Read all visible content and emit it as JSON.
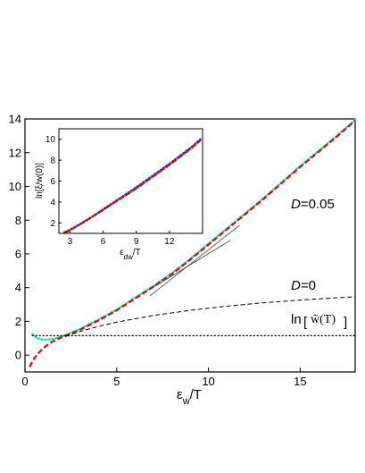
{
  "chart_data": [
    {
      "type": "line",
      "xlabel": "ε_w/T",
      "xlabel_main": "ε",
      "xlabel_sub": "w",
      "xlabel_tail": "/T",
      "xlim": [
        0,
        18
      ],
      "ylim": [
        -1,
        14
      ],
      "x_ticks": [
        0,
        5,
        10,
        15
      ],
      "y_ticks": [
        0,
        2,
        4,
        6,
        8,
        10,
        12,
        14
      ],
      "annotations": {
        "d005_italic": "D",
        "d005_rest": "=0.05",
        "d0_italic": "D",
        "d0_rest": "=0",
        "ln_label": "ln",
        "ln_inner": "w̃(T)"
      },
      "series": [
        {
          "style": "dotted-green",
          "color": "#00e0b0",
          "points": [
            [
              0.4,
              1.25
            ],
            [
              0.6,
              1.05
            ],
            [
              0.8,
              0.95
            ],
            [
              1.0,
              0.92
            ],
            [
              1.2,
              0.92
            ],
            [
              1.5,
              0.95
            ],
            [
              2,
              1.1
            ],
            [
              3,
              1.55
            ],
            [
              4,
              2.1
            ],
            [
              5,
              2.7
            ],
            [
              6,
              3.4
            ],
            [
              7,
              4.1
            ],
            [
              8,
              4.85
            ],
            [
              9,
              5.7
            ],
            [
              10,
              6.6
            ],
            [
              11,
              7.5
            ],
            [
              12,
              8.4
            ],
            [
              13,
              9.3
            ],
            [
              14,
              10.25
            ],
            [
              15,
              11.2
            ],
            [
              16,
              12.1
            ],
            [
              17,
              13.0
            ],
            [
              18,
              13.95
            ]
          ]
        },
        {
          "style": "dashed-red",
          "color": "#e00000",
          "points": [
            [
              0.25,
              -0.7
            ],
            [
              0.5,
              -0.2
            ],
            [
              0.8,
              0.2
            ],
            [
              1.1,
              0.5
            ],
            [
              1.5,
              0.8
            ],
            [
              2,
              1.05
            ],
            [
              3,
              1.5
            ],
            [
              4,
              2.05
            ],
            [
              5,
              2.65
            ],
            [
              6,
              3.35
            ],
            [
              7,
              4.05
            ],
            [
              8,
              4.8
            ],
            [
              9,
              5.65
            ],
            [
              10,
              6.55
            ],
            [
              11,
              7.45
            ],
            [
              12,
              8.35
            ],
            [
              13,
              9.25
            ],
            [
              14,
              10.2
            ],
            [
              15,
              11.15
            ],
            [
              16,
              12.05
            ],
            [
              17,
              12.95
            ],
            [
              18,
              13.9
            ]
          ]
        },
        {
          "style": "dashed-black",
          "color": "#000000",
          "points": [
            [
              2.2,
              1.1
            ],
            [
              3,
              1.4
            ],
            [
              4,
              1.7
            ],
            [
              5,
              1.95
            ],
            [
              6,
              2.15
            ],
            [
              7,
              2.35
            ],
            [
              8,
              2.5
            ],
            [
              9,
              2.65
            ],
            [
              10,
              2.78
            ],
            [
              11,
              2.9
            ],
            [
              12,
              3.0
            ],
            [
              13,
              3.1
            ],
            [
              14,
              3.18
            ],
            [
              15,
              3.26
            ],
            [
              16,
              3.33
            ],
            [
              17,
              3.4
            ],
            [
              18,
              3.45
            ]
          ]
        },
        {
          "style": "dotted-black",
          "color": "#000000",
          "points": [
            [
              0.4,
              1.15
            ],
            [
              18,
              1.15
            ]
          ]
        },
        {
          "style": "solid-thin",
          "color": "#444444",
          "points": [
            [
              6.8,
              3.5
            ],
            [
              11.7,
              7.7
            ]
          ]
        },
        {
          "style": "solid-thin",
          "color": "#444444",
          "points": [
            [
              6.8,
              3.9
            ],
            [
              11.2,
              6.8
            ]
          ]
        }
      ]
    },
    {
      "type": "line",
      "xlabel": "ε_dw/T",
      "xlabel_main": "ε",
      "xlabel_sub": "dw",
      "xlabel_tail": "/T",
      "ylabel": "ln[ξ/w(0)]",
      "xlim": [
        2,
        15
      ],
      "ylim": [
        1,
        11
      ],
      "x_ticks": [
        3,
        6,
        9,
        12
      ],
      "y_ticks": [
        2,
        4,
        6,
        8,
        10
      ],
      "series": [
        {
          "style": "dotted-green",
          "color": "#00e0b0",
          "points": [
            [
              2.5,
              1.05
            ],
            [
              3,
              1.3
            ],
            [
              4,
              1.9
            ],
            [
              5,
              2.55
            ],
            [
              6,
              3.2
            ],
            [
              7,
              3.9
            ],
            [
              8,
              4.55
            ],
            [
              9,
              5.25
            ],
            [
              10,
              6.0
            ],
            [
              11,
              6.75
            ],
            [
              12,
              7.5
            ],
            [
              13,
              8.3
            ],
            [
              14,
              9.1
            ],
            [
              14.8,
              9.85
            ]
          ]
        },
        {
          "style": "dotted-blue",
          "color": "#2020e0",
          "points": [
            [
              2.5,
              1.1
            ],
            [
              3,
              1.35
            ],
            [
              4,
              1.95
            ],
            [
              5,
              2.6
            ],
            [
              6,
              3.3
            ],
            [
              7,
              4.0
            ],
            [
              8,
              4.7
            ],
            [
              9,
              5.4
            ],
            [
              10,
              6.15
            ],
            [
              11,
              6.9
            ],
            [
              12,
              7.65
            ],
            [
              13,
              8.45
            ],
            [
              14,
              9.25
            ],
            [
              14.8,
              10.0
            ]
          ]
        },
        {
          "style": "dashed-red",
          "color": "#e00000",
          "points": [
            [
              2.5,
              1.05
            ],
            [
              3,
              1.3
            ],
            [
              4,
              1.92
            ],
            [
              5,
              2.57
            ],
            [
              6,
              3.25
            ],
            [
              7,
              3.95
            ],
            [
              8,
              4.62
            ],
            [
              9,
              5.32
            ],
            [
              10,
              6.07
            ],
            [
              11,
              6.82
            ],
            [
              12,
              7.57
            ],
            [
              13,
              8.37
            ],
            [
              14,
              9.17
            ],
            [
              14.8,
              9.9
            ]
          ]
        }
      ]
    }
  ]
}
